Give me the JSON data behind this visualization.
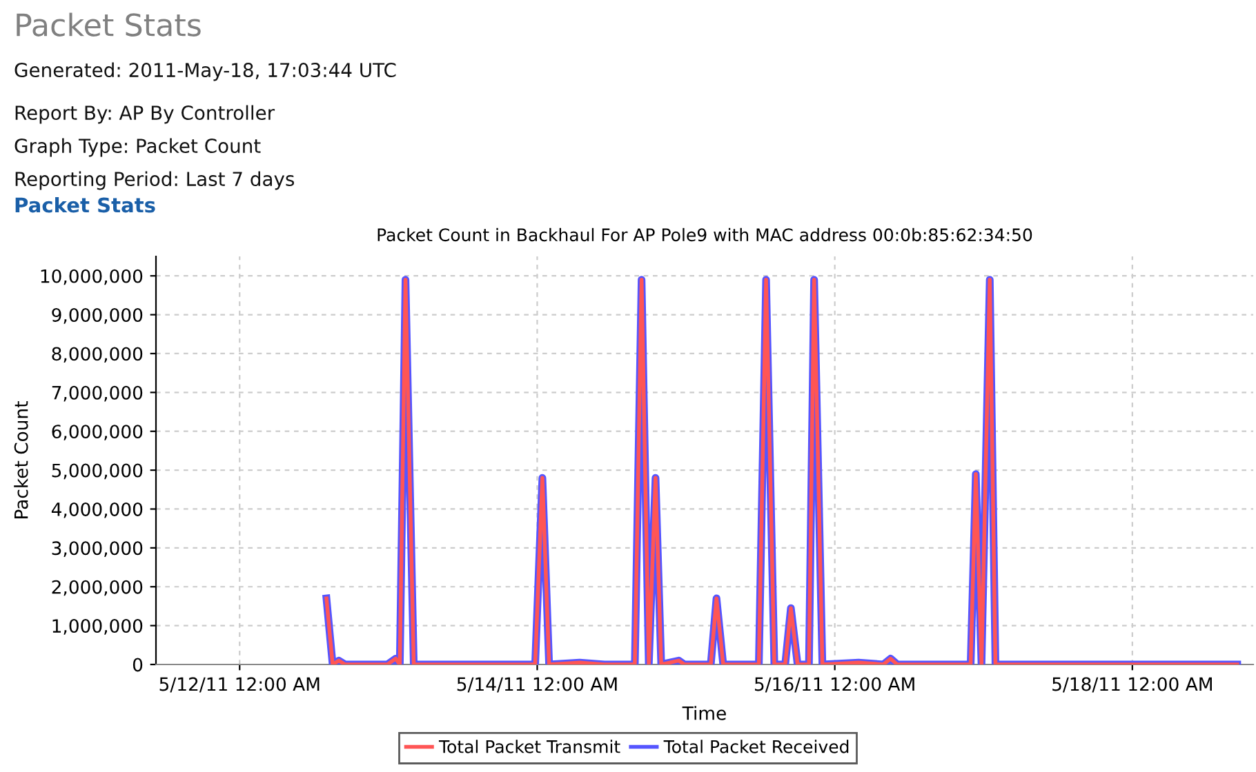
{
  "chart_data": {
    "type": "line",
    "title": "Packet Count in Backhaul For AP Pole9 with MAC address 00:0b:85:62:34:50",
    "xlabel": "Time",
    "ylabel": "Packet Count",
    "annotations": [
      "Packet Stats",
      "Generated: 2011-May-18, 17:03:44 UTC",
      "Report By: AP By Controller",
      "Graph Type: Packet Count",
      "Reporting Period: Last 7 days",
      "Packet Stats"
    ],
    "x": [
      "2011-05-12T14:00",
      "2011-05-12T15:00",
      "2011-05-12T16:00",
      "2011-05-12T17:00",
      "2011-05-12T23:50",
      "2011-05-13T01:10",
      "2011-05-13T01:50",
      "2011-05-13T02:45",
      "2011-05-13T04:05",
      "2011-05-13T23:40",
      "2011-05-14T00:50",
      "2011-05-14T01:55",
      "2011-05-14T06:50",
      "2011-05-14T10:50",
      "2011-05-14T15:45",
      "2011-05-14T16:50",
      "2011-05-14T18:00",
      "2011-05-14T19:05",
      "2011-05-14T20:00",
      "2011-05-14T22:50",
      "2011-05-14T23:45",
      "2011-05-15T04:00",
      "2011-05-15T04:55",
      "2011-05-15T06:00",
      "2011-05-15T11:45",
      "2011-05-15T12:55",
      "2011-05-15T14:15",
      "2011-05-15T16:00",
      "2011-05-15T16:55",
      "2011-05-15T18:00",
      "2011-05-15T19:50",
      "2011-05-15T20:40",
      "2011-05-15T22:00",
      "2011-05-16T03:50",
      "2011-05-16T07:50",
      "2011-05-16T09:00",
      "2011-05-16T10:05",
      "2011-05-16T21:55",
      "2011-05-16T22:45",
      "2011-05-16T23:40",
      "2011-05-17T01:00",
      "2011-05-17T01:55",
      "2011-05-17T13:55",
      "2011-05-18T16:55"
    ],
    "series": [
      {
        "name": "Total Packet Transmit",
        "color": "#ff5555",
        "values": [
          1700000,
          0,
          100000,
          0,
          0,
          150000,
          0,
          9900000,
          0,
          0,
          4800000,
          0,
          50000,
          0,
          0,
          9900000,
          0,
          4800000,
          0,
          100000,
          0,
          0,
          1700000,
          0,
          0,
          9900000,
          0,
          0,
          1450000,
          0,
          0,
          9900000,
          0,
          50000,
          0,
          150000,
          0,
          0,
          4900000,
          0,
          9900000,
          0,
          0,
          0
        ]
      },
      {
        "name": "Total Packet Received",
        "color": "#5555ff",
        "values": [
          1700000,
          0,
          100000,
          0,
          0,
          150000,
          0,
          9900000,
          0,
          0,
          4800000,
          0,
          50000,
          0,
          0,
          9900000,
          0,
          4800000,
          0,
          100000,
          0,
          0,
          1700000,
          0,
          0,
          9900000,
          0,
          0,
          1450000,
          0,
          0,
          9900000,
          0,
          50000,
          0,
          150000,
          0,
          0,
          4900000,
          0,
          9900000,
          0,
          0,
          0
        ]
      }
    ],
    "xlim": [
      "2011-05-11T10:30",
      "2011-05-18T19:30"
    ],
    "xticks": [
      {
        "value": "2011-05-12T00:00",
        "label": "5/12/11 12:00 AM"
      },
      {
        "value": "2011-05-14T00:00",
        "label": "5/14/11 12:00 AM"
      },
      {
        "value": "2011-05-16T00:00",
        "label": "5/16/11 12:00 AM"
      },
      {
        "value": "2011-05-18T00:00",
        "label": "5/18/11 12:00 AM"
      }
    ],
    "ylim": [
      0,
      10500000
    ],
    "yticks": [
      0,
      {
        "value": 1000000,
        "label": "1,000,000"
      },
      {
        "value": 2000000,
        "label": "2,000,000"
      },
      {
        "value": 3000000,
        "label": "3,000,000"
      },
      {
        "value": 4000000,
        "label": "4,000,000"
      },
      {
        "value": 5000000,
        "label": "5,000,000"
      },
      {
        "value": 6000000,
        "label": "6,000,000"
      },
      {
        "value": 7000000,
        "label": "7,000,000"
      },
      {
        "value": 8000000,
        "label": "8,000,000"
      },
      {
        "value": 9000000,
        "label": "9,000,000"
      },
      {
        "value": 10000000,
        "label": "10,000,000"
      }
    ],
    "grid": true,
    "legend": "bottom",
    "marker": "none",
    "line_style": "solid"
  }
}
